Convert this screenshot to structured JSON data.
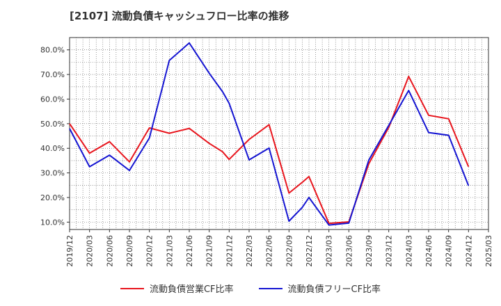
{
  "title": "[2107]  流動負債キャッシュフロー比率の推移",
  "chart_data": {
    "type": "line",
    "x": [
      "2019/12",
      "2020/03",
      "2020/06",
      "2020/09",
      "2020/12",
      "2021/03",
      "2021/06",
      "2021/09",
      "2021/12",
      "2022/03",
      "2022/06",
      "2022/09",
      "2022/12",
      "2023/03",
      "2023/06",
      "2023/09",
      "2023/12",
      "2024/03",
      "2024/06",
      "2024/09",
      "2024/12",
      "2025/03"
    ],
    "y_ticks": [
      "10.0%",
      "20.0%",
      "30.0%",
      "40.0%",
      "50.0%",
      "60.0%",
      "70.0%",
      "80.0%"
    ],
    "ylim": [
      7,
      85
    ],
    "grid": true,
    "legend_position": "bottom",
    "series": [
      {
        "name": "流動負債営業CF比率",
        "color": "#e8141c",
        "points": [
          [
            "2019/12",
            50.0
          ],
          [
            "2020/03",
            38.0
          ],
          [
            "2020/06",
            42.7
          ],
          [
            "2020/09",
            34.5
          ],
          [
            "2020/12",
            48.3
          ],
          [
            "2021/03",
            46.1
          ],
          [
            "2021/06",
            48.1
          ],
          [
            "2021/09",
            42.0
          ],
          [
            "2021/11",
            38.6
          ],
          [
            "2021/12",
            35.5
          ],
          [
            "2022/03",
            43.6
          ],
          [
            "2022/06",
            49.6
          ],
          [
            "2022/09",
            21.8
          ],
          [
            "2022/11",
            26.2
          ],
          [
            "2022/12",
            28.5
          ],
          [
            "2023/03",
            9.5
          ],
          [
            "2023/06",
            10.1
          ],
          [
            "2023/09",
            33.7
          ],
          [
            "2023/12",
            48.5
          ],
          [
            "2024/03",
            69.2
          ],
          [
            "2024/06",
            53.4
          ],
          [
            "2024/09",
            52.0
          ],
          [
            "2024/12",
            32.5
          ]
        ]
      },
      {
        "name": "流動負債フリーCF比率",
        "color": "#1414d2",
        "points": [
          [
            "2019/12",
            48.0
          ],
          [
            "2020/03",
            32.5
          ],
          [
            "2020/06",
            37.2
          ],
          [
            "2020/09",
            31.0
          ],
          [
            "2020/12",
            44.2
          ],
          [
            "2021/03",
            75.7
          ],
          [
            "2021/06",
            82.8
          ],
          [
            "2021/09",
            70.5
          ],
          [
            "2021/11",
            63.0
          ],
          [
            "2021/12",
            58.3
          ],
          [
            "2022/03",
            35.3
          ],
          [
            "2022/06",
            40.1
          ],
          [
            "2022/09",
            10.4
          ],
          [
            "2022/11",
            16.0
          ],
          [
            "2022/12",
            20.0
          ],
          [
            "2023/03",
            8.8
          ],
          [
            "2023/06",
            9.6
          ],
          [
            "2023/09",
            35.2
          ],
          [
            "2023/12",
            49.3
          ],
          [
            "2024/03",
            63.5
          ],
          [
            "2024/06",
            46.4
          ],
          [
            "2024/09",
            45.3
          ],
          [
            "2024/12",
            24.8
          ]
        ]
      }
    ]
  }
}
